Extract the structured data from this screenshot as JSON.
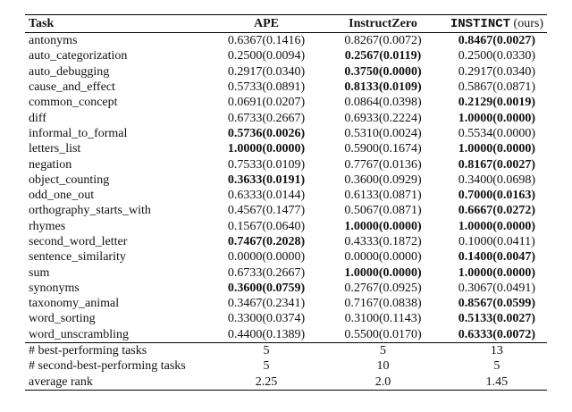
{
  "table": {
    "header": {
      "task": "Task",
      "columns": [
        {
          "name": "APE"
        },
        {
          "name": "InstructZero"
        },
        {
          "name": "INSTINCT",
          "note": "(ours)",
          "mono": true
        }
      ]
    },
    "rows": [
      {
        "task": "antonyms",
        "cells": [
          "0.6367(0.1416)",
          "0.8267(0.0072)",
          "0.8467(0.0027)"
        ],
        "bold": [
          2
        ]
      },
      {
        "task": "auto_categorization",
        "cells": [
          "0.2500(0.0094)",
          "0.2567(0.0119)",
          "0.2500(0.0330)"
        ],
        "bold": [
          1
        ]
      },
      {
        "task": "auto_debugging",
        "cells": [
          "0.2917(0.0340)",
          "0.3750(0.0000)",
          "0.2917(0.0340)"
        ],
        "bold": [
          1
        ]
      },
      {
        "task": "cause_and_effect",
        "cells": [
          "0.5733(0.0891)",
          "0.8133(0.0109)",
          "0.5867(0.0871)"
        ],
        "bold": [
          1
        ]
      },
      {
        "task": "common_concept",
        "cells": [
          "0.0691(0.0207)",
          "0.0864(0.0398)",
          "0.2129(0.0019)"
        ],
        "bold": [
          2
        ]
      },
      {
        "task": "diff",
        "cells": [
          "0.6733(0.2667)",
          "0.6933(0.2224)",
          "1.0000(0.0000)"
        ],
        "bold": [
          2
        ]
      },
      {
        "task": "informal_to_formal",
        "cells": [
          "0.5736(0.0026)",
          "0.5310(0.0024)",
          "0.5534(0.0000)"
        ],
        "bold": [
          0
        ]
      },
      {
        "task": "letters_list",
        "cells": [
          "1.0000(0.0000)",
          "0.5900(0.1674)",
          "1.0000(0.0000)"
        ],
        "bold": [
          0,
          2
        ]
      },
      {
        "task": "negation",
        "cells": [
          "0.7533(0.0109)",
          "0.7767(0.0136)",
          "0.8167(0.0027)"
        ],
        "bold": [
          2
        ]
      },
      {
        "task": "object_counting",
        "cells": [
          "0.3633(0.0191)",
          "0.3600(0.0929)",
          "0.3400(0.0698)"
        ],
        "bold": [
          0
        ]
      },
      {
        "task": "odd_one_out",
        "cells": [
          "0.6333(0.0144)",
          "0.6133(0.0871)",
          "0.7000(0.0163)"
        ],
        "bold": [
          2
        ]
      },
      {
        "task": "orthography_starts_with",
        "cells": [
          "0.4567(0.1477)",
          "0.5067(0.0871)",
          "0.6667(0.0272)"
        ],
        "bold": [
          2
        ]
      },
      {
        "task": "rhymes",
        "cells": [
          "0.1567(0.0640)",
          "1.0000(0.0000)",
          "1.0000(0.0000)"
        ],
        "bold": [
          1,
          2
        ]
      },
      {
        "task": "second_word_letter",
        "cells": [
          "0.7467(0.2028)",
          "0.4333(0.1872)",
          "0.1000(0.0411)"
        ],
        "bold": [
          0
        ]
      },
      {
        "task": "sentence_similarity",
        "cells": [
          "0.0000(0.0000)",
          "0.0000(0.0000)",
          "0.1400(0.0047)"
        ],
        "bold": [
          2
        ]
      },
      {
        "task": "sum",
        "cells": [
          "0.6733(0.2667)",
          "1.0000(0.0000)",
          "1.0000(0.0000)"
        ],
        "bold": [
          1,
          2
        ]
      },
      {
        "task": "synonyms",
        "cells": [
          "0.3600(0.0759)",
          "0.2767(0.0925)",
          "0.3067(0.0491)"
        ],
        "bold": [
          0
        ]
      },
      {
        "task": "taxonomy_animal",
        "cells": [
          "0.3467(0.2341)",
          "0.7167(0.0838)",
          "0.8567(0.0599)"
        ],
        "bold": [
          2
        ]
      },
      {
        "task": "word_sorting",
        "cells": [
          "0.3300(0.0374)",
          "0.3100(0.1143)",
          "0.5133(0.0027)"
        ],
        "bold": [
          2
        ]
      },
      {
        "task": "word_unscrambling",
        "cells": [
          "0.4400(0.1389)",
          "0.5500(0.0170)",
          "0.6333(0.0072)"
        ],
        "bold": [
          2
        ]
      }
    ],
    "summary": [
      {
        "task": "# best-performing tasks",
        "cells": [
          "5",
          "5",
          "13"
        ]
      },
      {
        "task": "# second-best-performing tasks",
        "cells": [
          "5",
          "10",
          "5"
        ]
      },
      {
        "task": "average rank",
        "cells": [
          "2.25",
          "2.0",
          "1.45"
        ]
      }
    ]
  }
}
